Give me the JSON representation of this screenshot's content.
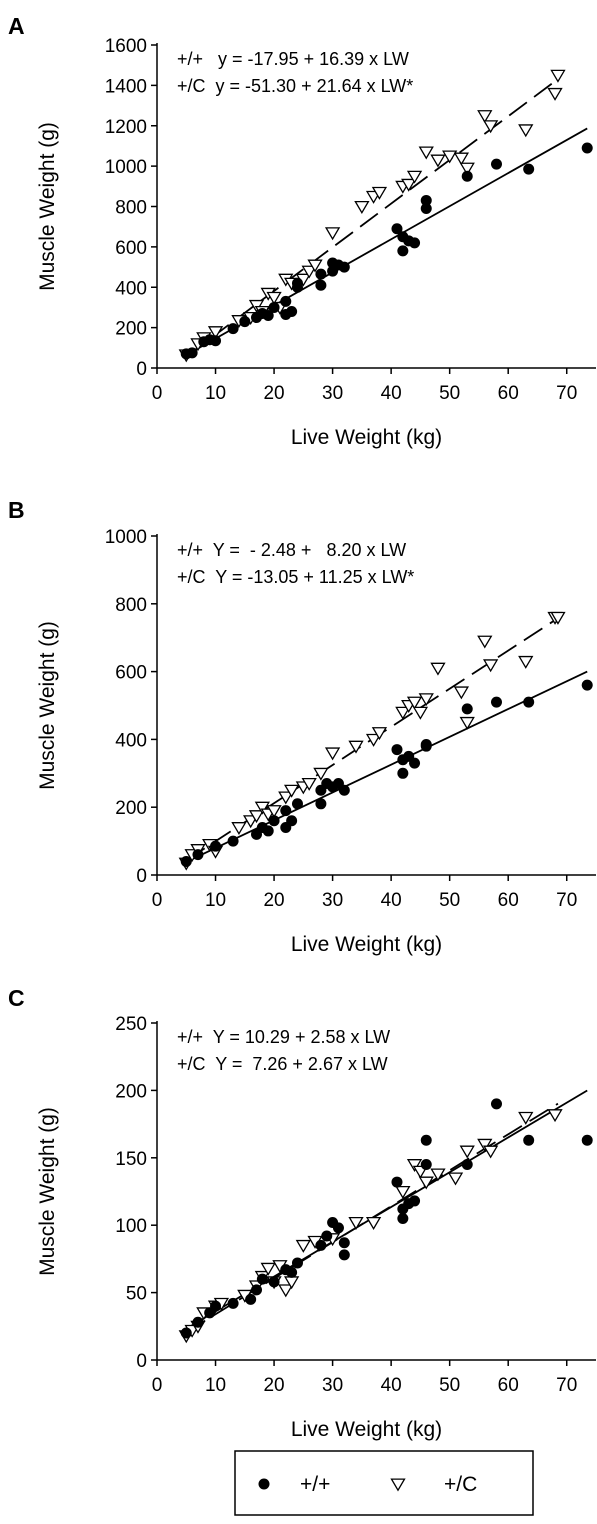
{
  "legend": {
    "items": [
      {
        "label": "+/+",
        "marker": "filled-circle",
        "color": "#000000"
      },
      {
        "label": "+/C",
        "marker": "open-triangle-down",
        "color": "#ffffff"
      }
    ]
  },
  "chart_data": [
    {
      "type": "scatter",
      "panel": "A",
      "xlabel": "Live Weight (kg)",
      "ylabel": "Muscle Weight (g)",
      "xlim": [
        0,
        75
      ],
      "ylim": [
        0,
        1600
      ],
      "xticks": [
        0,
        10,
        20,
        30,
        40,
        50,
        60,
        70
      ],
      "yticks": [
        0,
        200,
        400,
        600,
        800,
        1000,
        1200,
        1400,
        1600
      ],
      "equations": [
        "+/+   y = -17.95 + 16.39 x LW",
        "+/C  y = -51.30 + 21.64 x LW*"
      ],
      "grid": false,
      "series": [
        {
          "name": "+/+",
          "marker": "filled-circle",
          "line": {
            "style": "solid",
            "intercept": -17.95,
            "slope": 16.39,
            "x_range": [
              5,
              73.5
            ]
          },
          "points": [
            [
              5,
              70
            ],
            [
              6,
              75
            ],
            [
              8,
              130
            ],
            [
              9,
              140
            ],
            [
              10,
              135
            ],
            [
              13,
              195
            ],
            [
              15,
              230
            ],
            [
              17,
              250
            ],
            [
              18,
              270
            ],
            [
              19,
              260
            ],
            [
              20,
              300
            ],
            [
              22,
              265
            ],
            [
              22,
              330
            ],
            [
              23,
              280
            ],
            [
              24,
              400
            ],
            [
              24,
              420
            ],
            [
              28,
              410
            ],
            [
              28,
              465
            ],
            [
              30,
              480
            ],
            [
              30,
              520
            ],
            [
              31,
              510
            ],
            [
              32,
              500
            ],
            [
              41,
              690
            ],
            [
              42,
              580
            ],
            [
              42,
              650
            ],
            [
              43,
              630
            ],
            [
              44,
              620
            ],
            [
              46,
              790
            ],
            [
              46,
              830
            ],
            [
              53,
              950
            ],
            [
              58,
              1010
            ],
            [
              63.5,
              985
            ],
            [
              73.5,
              1090
            ]
          ]
        },
        {
          "name": "+/C",
          "marker": "open-triangle-down",
          "line": {
            "style": "dashed",
            "intercept": -51.3,
            "slope": 21.64,
            "x_range": [
              5,
              68.5
            ]
          },
          "points": [
            [
              5,
              65
            ],
            [
              7,
              120
            ],
            [
              8,
              150
            ],
            [
              10,
              180
            ],
            [
              14,
              235
            ],
            [
              16,
              250
            ],
            [
              17,
              310
            ],
            [
              18,
              280
            ],
            [
              19,
              370
            ],
            [
              20,
              350
            ],
            [
              21,
              300
            ],
            [
              22,
              440
            ],
            [
              23,
              420
            ],
            [
              25,
              440
            ],
            [
              26,
              480
            ],
            [
              27,
              510
            ],
            [
              30,
              670
            ],
            [
              35,
              800
            ],
            [
              37,
              850
            ],
            [
              38,
              870
            ],
            [
              42,
              900
            ],
            [
              43,
              910
            ],
            [
              44,
              950
            ],
            [
              46,
              1070
            ],
            [
              48,
              1030
            ],
            [
              50,
              1050
            ],
            [
              52,
              1040
            ],
            [
              53,
              990
            ],
            [
              56,
              1250
            ],
            [
              57,
              1200
            ],
            [
              63,
              1180
            ],
            [
              68,
              1360
            ],
            [
              68.5,
              1450
            ]
          ]
        }
      ]
    },
    {
      "type": "scatter",
      "panel": "B",
      "xlabel": "Live Weight (kg)",
      "ylabel": "Muscle Weight (g)",
      "xlim": [
        0,
        75
      ],
      "ylim": [
        0,
        1000
      ],
      "xticks": [
        0,
        10,
        20,
        30,
        40,
        50,
        60,
        70
      ],
      "yticks": [
        0,
        200,
        400,
        600,
        800,
        1000
      ],
      "equations": [
        "+/+  Y =  - 2.48 +   8.20 x LW",
        "+/C  Y = -13.05 + 11.25 x LW*"
      ],
      "grid": false,
      "series": [
        {
          "name": "+/+",
          "marker": "filled-circle",
          "line": {
            "style": "solid",
            "intercept": -2.48,
            "slope": 8.2,
            "x_range": [
              5,
              73.5
            ]
          },
          "points": [
            [
              5,
              40
            ],
            [
              7,
              60
            ],
            [
              10,
              85
            ],
            [
              13,
              100
            ],
            [
              17,
              120
            ],
            [
              18,
              140
            ],
            [
              19,
              130
            ],
            [
              20,
              160
            ],
            [
              22,
              140
            ],
            [
              22,
              190
            ],
            [
              23,
              160
            ],
            [
              24,
              210
            ],
            [
              28,
              210
            ],
            [
              28,
              250
            ],
            [
              29,
              270
            ],
            [
              30,
              260
            ],
            [
              31,
              270
            ],
            [
              32,
              250
            ],
            [
              41,
              370
            ],
            [
              42,
              300
            ],
            [
              42,
              340
            ],
            [
              43,
              350
            ],
            [
              44,
              330
            ],
            [
              46,
              380
            ],
            [
              46,
              385
            ],
            [
              53,
              490
            ],
            [
              58,
              510
            ],
            [
              63.5,
              510
            ],
            [
              73.5,
              560
            ]
          ]
        },
        {
          "name": "+/C",
          "marker": "open-triangle-down",
          "line": {
            "style": "dashed",
            "intercept": -13.05,
            "slope": 11.25,
            "x_range": [
              5,
              68.5
            ]
          },
          "points": [
            [
              5,
              35
            ],
            [
              6,
              60
            ],
            [
              7,
              75
            ],
            [
              9,
              90
            ],
            [
              10,
              70
            ],
            [
              14,
              140
            ],
            [
              16,
              160
            ],
            [
              17,
              175
            ],
            [
              18,
              200
            ],
            [
              19,
              180
            ],
            [
              20,
              190
            ],
            [
              22,
              230
            ],
            [
              23,
              250
            ],
            [
              25,
              260
            ],
            [
              26,
              270
            ],
            [
              28,
              300
            ],
            [
              30,
              360
            ],
            [
              34,
              380
            ],
            [
              37,
              400
            ],
            [
              38,
              420
            ],
            [
              42,
              480
            ],
            [
              43,
              500
            ],
            [
              44,
              510
            ],
            [
              45,
              480
            ],
            [
              46,
              520
            ],
            [
              48,
              610
            ],
            [
              52,
              540
            ],
            [
              53,
              450
            ],
            [
              56,
              690
            ],
            [
              57,
              620
            ],
            [
              63,
              630
            ],
            [
              68,
              760
            ],
            [
              68.5,
              760
            ]
          ]
        }
      ]
    },
    {
      "type": "scatter",
      "panel": "C",
      "xlabel": "Live Weight (kg)",
      "ylabel": "Muscle Weight (g)",
      "xlim": [
        0,
        75
      ],
      "ylim": [
        0,
        250
      ],
      "xticks": [
        0,
        10,
        20,
        30,
        40,
        50,
        60,
        70
      ],
      "yticks": [
        0,
        50,
        100,
        150,
        200,
        250
      ],
      "equations": [
        "+/+  Y = 10.29 + 2.58 x LW",
        "+/C  Y =  7.26 + 2.67 x LW"
      ],
      "grid": false,
      "series": [
        {
          "name": "+/+",
          "marker": "filled-circle",
          "line": {
            "style": "solid",
            "intercept": 10.29,
            "slope": 2.58,
            "x_range": [
              5,
              73.5
            ]
          },
          "points": [
            [
              5,
              20
            ],
            [
              7,
              28
            ],
            [
              9,
              35
            ],
            [
              10,
              40
            ],
            [
              13,
              42
            ],
            [
              16,
              45
            ],
            [
              17,
              52
            ],
            [
              18,
              60
            ],
            [
              20,
              58
            ],
            [
              22,
              67
            ],
            [
              23,
              65
            ],
            [
              24,
              72
            ],
            [
              28,
              85
            ],
            [
              29,
              92
            ],
            [
              30,
              102
            ],
            [
              31,
              98
            ],
            [
              32,
              78
            ],
            [
              32,
              87
            ],
            [
              41,
              132
            ],
            [
              42,
              105
            ],
            [
              42,
              112
            ],
            [
              43,
              116
            ],
            [
              44,
              118
            ],
            [
              46,
              163
            ],
            [
              46,
              145
            ],
            [
              53,
              145
            ],
            [
              58,
              190
            ],
            [
              63.5,
              163
            ],
            [
              73.5,
              163
            ]
          ]
        },
        {
          "name": "+/C",
          "marker": "open-triangle-down",
          "line": {
            "style": "dashed",
            "intercept": 7.26,
            "slope": 2.67,
            "x_range": [
              5,
              68.5
            ]
          },
          "points": [
            [
              5,
              18
            ],
            [
              6,
              22
            ],
            [
              7,
              25
            ],
            [
              8,
              35
            ],
            [
              10,
              40
            ],
            [
              11,
              42
            ],
            [
              15,
              48
            ],
            [
              17,
              55
            ],
            [
              18,
              62
            ],
            [
              19,
              68
            ],
            [
              20,
              58
            ],
            [
              21,
              70
            ],
            [
              22,
              52
            ],
            [
              23,
              58
            ],
            [
              25,
              85
            ],
            [
              27,
              88
            ],
            [
              30,
              90
            ],
            [
              34,
              102
            ],
            [
              37,
              102
            ],
            [
              42,
              125
            ],
            [
              44,
              145
            ],
            [
              45,
              140
            ],
            [
              46,
              132
            ],
            [
              48,
              138
            ],
            [
              51,
              135
            ],
            [
              53,
              155
            ],
            [
              56,
              160
            ],
            [
              57,
              155
            ],
            [
              63,
              180
            ],
            [
              68,
              182
            ]
          ]
        }
      ]
    }
  ]
}
